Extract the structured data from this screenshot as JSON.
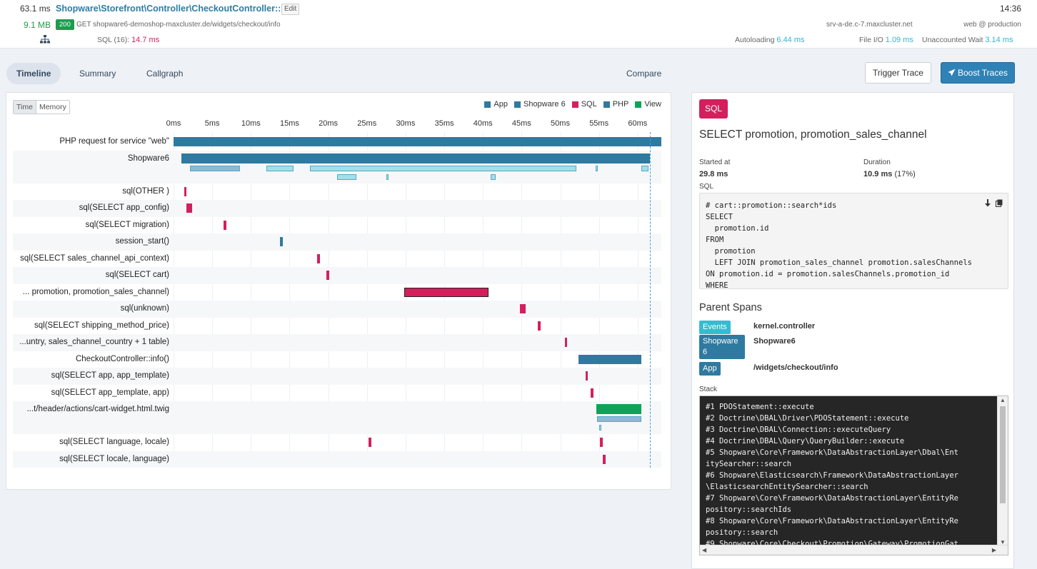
{
  "header": {
    "duration": "63.1 ms",
    "title": "Shopware\\Storefront\\Controller\\CheckoutController::info",
    "edit_label": "Edit",
    "time": "14:36",
    "memory": "9.1 MB",
    "status": "200",
    "request": "GET shopware6-demoshop-maxcluster.de/widgets/checkout/info",
    "host": "srv-a-de.c-7.maxcluster.net",
    "env": "web @ production",
    "sql_label": "SQL (16):",
    "sql_value": "14.7 ms",
    "autoloading_label": "Autoloading",
    "autoloading_value": "6.44 ms",
    "fileio_label": "File I/O",
    "fileio_value": "1.09 ms",
    "unaccounted_label": "Unaccounted Wait",
    "unaccounted_value": "3.14 ms"
  },
  "tabs": [
    {
      "label": "Timeline",
      "active": true
    },
    {
      "label": "Summary",
      "active": false
    },
    {
      "label": "Callgraph",
      "active": false
    }
  ],
  "compare_label": "Compare",
  "buttons": {
    "trigger": "Trigger Trace",
    "boost": "Boost Traces"
  },
  "timeline": {
    "toggle": [
      "Time",
      "Memory"
    ],
    "legend": [
      {
        "label": "App",
        "color": "#2f7aa0"
      },
      {
        "label": "Shopware 6",
        "color": "#2f7aa0"
      },
      {
        "label": "SQL",
        "color": "#d41f5d"
      },
      {
        "label": "PHP",
        "color": "#2f7aa0"
      },
      {
        "label": "View",
        "color": "#0fa35a"
      }
    ],
    "ticks": [
      "0ms",
      "5ms",
      "10ms",
      "15ms",
      "20ms",
      "25ms",
      "30ms",
      "35ms",
      "40ms",
      "45ms",
      "50ms",
      "55ms",
      "60ms"
    ],
    "tick_values": [
      0,
      5,
      10,
      15,
      20,
      25,
      30,
      35,
      40,
      45,
      50,
      55,
      60
    ],
    "total_ms": 63.1,
    "end_ms": 61.6,
    "rows": [
      {
        "label": "PHP request for service \"web\"",
        "bars": [
          {
            "start": 0,
            "end": 63.1,
            "color": "#2f7aa0"
          }
        ]
      },
      {
        "label": "Shopware6",
        "tall": true,
        "bars": [
          {
            "start": 1.0,
            "end": 61.6,
            "color": "#2f7aa0"
          },
          {
            "start": 2.1,
            "end": 8.6,
            "color": "#8fb8d4",
            "sub": 1
          },
          {
            "start": 12.0,
            "end": 15.5,
            "color": "#9fe0ea",
            "sub": 1
          },
          {
            "start": 17.6,
            "end": 52.1,
            "color": "#9fe0ea",
            "sub": 1
          },
          {
            "start": 54.6,
            "end": 54.8,
            "color": "#9fe0ea",
            "sub": 1
          },
          {
            "start": 60.5,
            "end": 61.4,
            "color": "#9fe0ea",
            "sub": 1
          },
          {
            "start": 21.1,
            "end": 23.6,
            "color": "#9fe0ea",
            "sub": 2
          },
          {
            "start": 27.5,
            "end": 27.8,
            "color": "#9fe0ea",
            "sub": 2
          },
          {
            "start": 41.0,
            "end": 41.6,
            "color": "#9fe0ea",
            "sub": 2
          }
        ]
      },
      {
        "label": "sql(OTHER )",
        "bars": [
          {
            "start": 1.4,
            "end": 1.7,
            "color": "#d41f5d"
          }
        ]
      },
      {
        "label": "sql(SELECT app_config)",
        "bars": [
          {
            "start": 1.7,
            "end": 2.4,
            "color": "#d41f5d"
          }
        ]
      },
      {
        "label": "sql(SELECT migration)",
        "bars": [
          {
            "start": 6.5,
            "end": 6.8,
            "color": "#d41f5d"
          }
        ]
      },
      {
        "label": "session_start()",
        "bars": [
          {
            "start": 13.8,
            "end": 14.1,
            "color": "#2f7aa0"
          }
        ]
      },
      {
        "label": "sql(SELECT sales_channel_api_context)",
        "bars": [
          {
            "start": 18.6,
            "end": 18.9,
            "color": "#d41f5d"
          }
        ]
      },
      {
        "label": "sql(SELECT cart)",
        "bars": [
          {
            "start": 19.8,
            "end": 20.1,
            "color": "#d41f5d"
          }
        ]
      },
      {
        "label": "... promotion, promotion_sales_channel)",
        "bars": [
          {
            "start": 29.8,
            "end": 40.7,
            "color": "#d41f5d",
            "border": true
          }
        ]
      },
      {
        "label": "sql(unknown)",
        "bars": [
          {
            "start": 44.8,
            "end": 45.5,
            "color": "#d41f5d"
          }
        ]
      },
      {
        "label": "sql(SELECT shipping_method_price)",
        "bars": [
          {
            "start": 47.1,
            "end": 47.5,
            "color": "#d41f5d"
          }
        ]
      },
      {
        "label": "...untry, sales_channel_country + 1 table)",
        "bars": [
          {
            "start": 50.6,
            "end": 50.9,
            "color": "#d41f5d"
          }
        ]
      },
      {
        "label": "CheckoutController::info()",
        "bars": [
          {
            "start": 52.4,
            "end": 60.5,
            "color": "#2f7aa0"
          }
        ]
      },
      {
        "label": "sql(SELECT app, app_template)",
        "bars": [
          {
            "start": 53.3,
            "end": 53.6,
            "color": "#d41f5d"
          }
        ]
      },
      {
        "label": "sql(SELECT app_template, app)",
        "bars": [
          {
            "start": 53.9,
            "end": 54.3,
            "color": "#d41f5d"
          }
        ]
      },
      {
        "label": "...t/header/actions/cart-widget.html.twig",
        "tall": true,
        "bars": [
          {
            "start": 54.7,
            "end": 60.5,
            "color": "#0fa35a"
          },
          {
            "start": 54.8,
            "end": 60.5,
            "color": "#8fb8d4",
            "sub": 1
          },
          {
            "start": 55.0,
            "end": 55.2,
            "color": "#9fe0ea",
            "sub": 2
          }
        ]
      },
      {
        "label": "sql(SELECT language, locale)",
        "bars": [
          {
            "start": 25.2,
            "end": 25.6,
            "color": "#d41f5d"
          },
          {
            "start": 55.1,
            "end": 55.5,
            "color": "#d41f5d"
          }
        ]
      },
      {
        "label": "sql(SELECT locale, language)",
        "bars": [
          {
            "start": 55.5,
            "end": 55.9,
            "color": "#d41f5d"
          }
        ]
      }
    ]
  },
  "detail": {
    "badge": "SQL",
    "title": "SELECT promotion, promotion_sales_channel",
    "started_label": "Started at",
    "started_value": "29.8 ms",
    "duration_label": "Duration",
    "duration_value": "10.9 ms",
    "duration_pct": "(17%)",
    "sql_label": "SQL",
    "sql_text": "# cart::promotion::search*ids\nSELECT\n  promotion.id\nFROM\n  promotion\n  LEFT JOIN promotion_sales_channel promotion.salesChannels\nON promotion.id = promotion.salesChannels.promotion_id\nWHERE",
    "parent_spans_heading": "Parent Spans",
    "parent_spans": [
      {
        "tag": "Events",
        "color": "#34bcd0",
        "value": "kernel.controller"
      },
      {
        "tag": "Shopware 6",
        "color": "#2f7aa0",
        "value": "Shopware6"
      },
      {
        "tag": "App",
        "color": "#2f7aa0",
        "value": "/widgets/checkout/info"
      }
    ],
    "stack_label": "Stack",
    "stack_text": "#1 PDOStatement::execute\n#2 Doctrine\\DBAL\\Driver\\PDOStatement::execute\n#3 Doctrine\\DBAL\\Connection::executeQuery\n#4 Doctrine\\DBAL\\Query\\QueryBuilder::execute\n#5 Shopware\\Core\\Framework\\DataAbstractionLayer\\Dbal\\Ent\nitySearcher::search\n#6 Shopware\\Elasticsearch\\Framework\\DataAbstractionLayer\n\\ElasticsearchEntitySearcher::search\n#7 Shopware\\Core\\Framework\\DataAbstractionLayer\\EntityRe\npository::searchIds\n#8 Shopware\\Core\\Framework\\DataAbstractionLayer\\EntityRe\npository::search\n#9 Shopware\\Core\\Checkout\\Promotion\\Gateway\\PromotionGat"
  }
}
